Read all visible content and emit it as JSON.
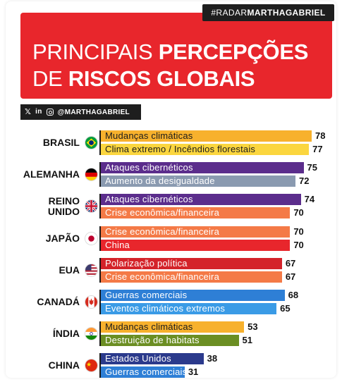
{
  "colors": {
    "brand_red": "#e8262c",
    "dark": "#1e1e1e",
    "label_dark": "#1b1b1b",
    "label_light": "#ffffff"
  },
  "header": {
    "hashtag": {
      "prefix": "#RADAR",
      "suffix": "MARTHAGABRIEL"
    },
    "title_line_1": {
      "light": "PRINCIPAIS ",
      "bold": "PERCEPÇÕES"
    },
    "title_line_2": {
      "light": "DE ",
      "bold": "RISCOS GLOBAIS"
    },
    "social": {
      "icons": [
        "x-icon",
        "linkedin-icon",
        "instagram-icon"
      ],
      "handle": "@MARTHAGABRIEL"
    }
  },
  "chart_data": {
    "type": "bar",
    "orientation": "horizontal",
    "xlim": [
      0,
      80
    ],
    "grid": false,
    "legend": false,
    "groups": [
      {
        "country": "BRASIL",
        "flag": "flag-brazil-icon",
        "bars": [
          {
            "label": "Mudanças climáticas",
            "value": 78,
            "color": "#f7b12d"
          },
          {
            "label": "Clima extremo / Incêndios florestais",
            "value": 77,
            "color": "#fbd63f"
          }
        ]
      },
      {
        "country": "ALEMANHA",
        "flag": "flag-germany-icon",
        "bars": [
          {
            "label": "Ataques cibernéticos",
            "value": 75,
            "color": "#5b2d8c"
          },
          {
            "label": "Aumento da desigualdade",
            "value": 72,
            "color": "#8a9ab0"
          }
        ]
      },
      {
        "country": "REINO UNIDO",
        "country_lines": [
          "REINO",
          "UNIDO"
        ],
        "flag": "flag-uk-icon",
        "bars": [
          {
            "label": "Ataques cibernéticos",
            "value": 74,
            "color": "#5b2d8c"
          },
          {
            "label": "Crise econômica/financeira",
            "value": 70,
            "color": "#f47a47"
          }
        ]
      },
      {
        "country": "JAPÃO",
        "flag": "flag-japan-icon",
        "bars": [
          {
            "label": "Crise econômica/financeira",
            "value": 70,
            "color": "#f47a47"
          },
          {
            "label": "China",
            "value": 70,
            "color": "#e8262c"
          }
        ]
      },
      {
        "country": "EUA",
        "flag": "flag-usa-icon",
        "bars": [
          {
            "label": "Polarização política",
            "value": 67,
            "color": "#d4232a"
          },
          {
            "label": "Crise econômica/financeira",
            "value": 67,
            "color": "#f47a47"
          }
        ]
      },
      {
        "country": "CANADÁ",
        "flag": "flag-canada-icon",
        "bars": [
          {
            "label": "Guerras comerciais",
            "value": 68,
            "color": "#2e7fd6"
          },
          {
            "label": "Eventos climáticos extremos",
            "value": 65,
            "color": "#3a9be6"
          }
        ]
      },
      {
        "country": "ÍNDIA",
        "flag": "flag-india-icon",
        "bars": [
          {
            "label": "Mudanças climáticas",
            "value": 53,
            "color": "#f7b12d"
          },
          {
            "label": "Destruição de habitats",
            "value": 51,
            "color": "#6b8e23"
          }
        ]
      },
      {
        "country": "CHINA",
        "flag": "flag-china-icon",
        "bars": [
          {
            "label": "Estados Unidos",
            "value": 38,
            "color": "#2b3a8c"
          },
          {
            "label": "Guerras comerciais",
            "value": 31,
            "color": "#2e7fd6"
          }
        ]
      }
    ]
  }
}
